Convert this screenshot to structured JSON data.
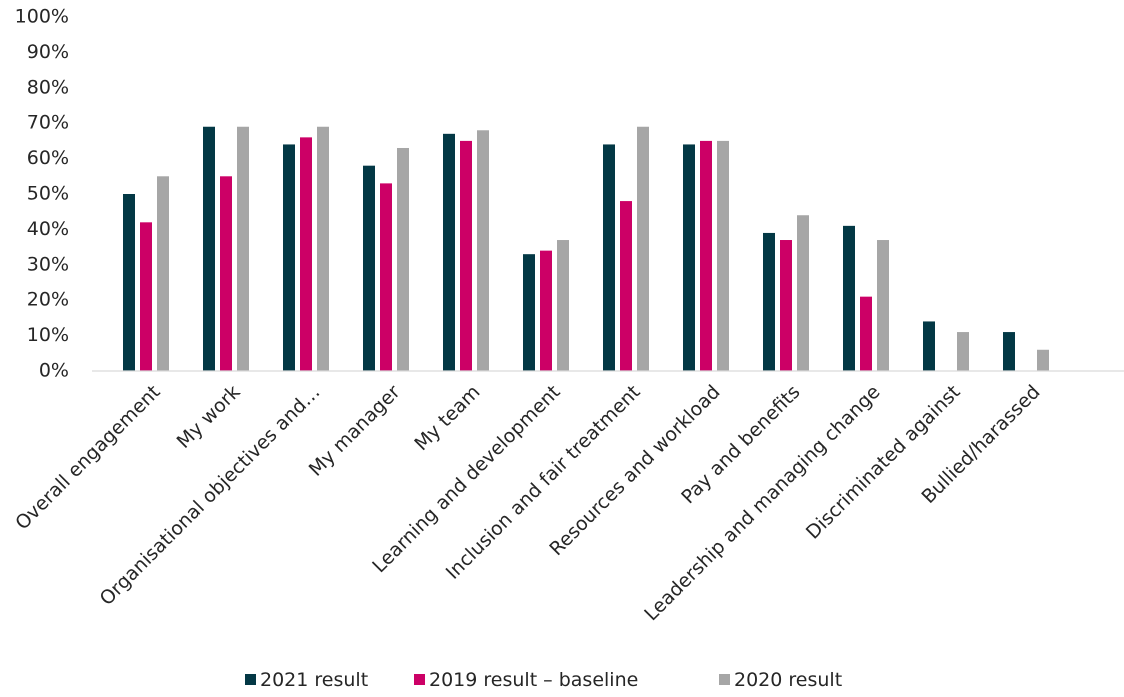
{
  "chart_data": {
    "type": "bar",
    "title": "",
    "xlabel": "",
    "ylabel": "",
    "ylim": [
      0,
      100
    ],
    "yticks": [
      "0%",
      "10%",
      "20%",
      "30%",
      "40%",
      "50%",
      "60%",
      "70%",
      "80%",
      "90%",
      "100%"
    ],
    "legend_position": "bottom",
    "grid": false,
    "categories": [
      "Overall engagement",
      "My work",
      "Organisational objectives and…",
      "My manager",
      "My team",
      "Learning and development",
      "Inclusion and fair treatment",
      "Resources and workload",
      "Pay and benefits",
      "Leadership and managing change",
      "Discriminated against",
      "Bullied/harassed"
    ],
    "series": [
      {
        "name": "2021 result",
        "color": "#033845",
        "values": [
          50,
          69,
          64,
          58,
          67,
          33,
          64,
          64,
          39,
          41,
          14,
          11
        ]
      },
      {
        "name": "2019 result – baseline",
        "color": "#cc0066",
        "values": [
          42,
          55,
          66,
          53,
          65,
          34,
          48,
          65,
          37,
          21,
          null,
          null
        ]
      },
      {
        "name": "2020 result",
        "color": "#a6a6a6",
        "values": [
          55,
          69,
          69,
          63,
          68,
          37,
          69,
          65,
          44,
          37,
          11,
          6
        ]
      }
    ]
  }
}
